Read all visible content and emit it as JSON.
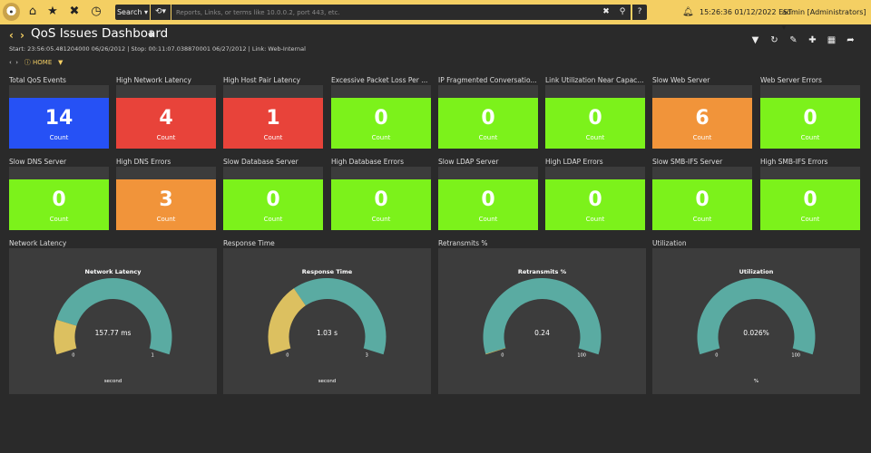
{
  "topbar": {
    "search_label": "Search ▾",
    "history_label": "⟲▾",
    "search_placeholder": "Reports, Links, or terms like 10.0.0.2, port 443, etc.",
    "help_label": "?",
    "clock": "15:26:36 01/12/2022 EST",
    "user": "admin [Administrators] ▾"
  },
  "header": {
    "title": "QoS Issues Dashboard",
    "subtitle": "Start: 23:56:05.481204000 06/26/2012 | Stop: 00:11:07.038870001 06/27/2012 | Link: Web-Internal",
    "breadcrumb_home": "HOME"
  },
  "tiles_row1": [
    {
      "title": "Total QoS Events",
      "value": "14",
      "unit": "Count",
      "color": "#2651f5"
    },
    {
      "title": "High Network Latency",
      "value": "4",
      "unit": "Count",
      "color": "#e8433a"
    },
    {
      "title": "High Host Pair Latency",
      "value": "1",
      "unit": "Count",
      "color": "#e8433a"
    },
    {
      "title": "Excessive Packet Loss Per ...",
      "value": "0",
      "unit": "Count",
      "color": "#7cf21b"
    },
    {
      "title": "IP Fragmented Conversatio...",
      "value": "0",
      "unit": "Count",
      "color": "#7cf21b"
    },
    {
      "title": "Link Utilization Near Capac...",
      "value": "0",
      "unit": "Count",
      "color": "#7cf21b"
    },
    {
      "title": "Slow Web Server",
      "value": "6",
      "unit": "Count",
      "color": "#f1943a"
    },
    {
      "title": "Web Server Errors",
      "value": "0",
      "unit": "Count",
      "color": "#7cf21b"
    }
  ],
  "tiles_row2": [
    {
      "title": "Slow DNS Server",
      "value": "0",
      "unit": "Count",
      "color": "#7cf21b"
    },
    {
      "title": "High DNS Errors",
      "value": "3",
      "unit": "Count",
      "color": "#f1943a"
    },
    {
      "title": "Slow Database Server",
      "value": "0",
      "unit": "Count",
      "color": "#7cf21b"
    },
    {
      "title": "High Database Errors",
      "value": "0",
      "unit": "Count",
      "color": "#7cf21b"
    },
    {
      "title": "Slow LDAP Server",
      "value": "0",
      "unit": "Count",
      "color": "#7cf21b"
    },
    {
      "title": "High LDAP Errors",
      "value": "0",
      "unit": "Count",
      "color": "#7cf21b"
    },
    {
      "title": "Slow SMB-IFS Server",
      "value": "0",
      "unit": "Count",
      "color": "#7cf21b"
    },
    {
      "title": "High SMB-IFS Errors",
      "value": "0",
      "unit": "Count",
      "color": "#7cf21b"
    }
  ],
  "gauges": [
    {
      "widget_title": "Network Latency",
      "chart_title": "Network Latency",
      "value_label": "157.77 ms",
      "min_label": "0",
      "max_label": "1",
      "unit_label": "second",
      "fraction": 0.16
    },
    {
      "widget_title": "Response Time",
      "chart_title": "Response Time",
      "value_label": "1.03 s",
      "min_label": "0",
      "max_label": "3",
      "unit_label": "second",
      "fraction": 0.34
    },
    {
      "widget_title": "Retransmits %",
      "chart_title": "Retransmits %",
      "value_label": "0.24",
      "min_label": "0",
      "max_label": "100",
      "unit_label": "",
      "fraction": 0.0024
    },
    {
      "widget_title": "Utilization",
      "chart_title": "Utilization",
      "value_label": "0.026%",
      "min_label": "0",
      "max_label": "100",
      "unit_label": "%",
      "fraction": 0.00026
    }
  ],
  "colors": {
    "gauge_fill": "#5aaba2",
    "gauge_value": "#dcc060",
    "accent": "#f4cf63"
  }
}
